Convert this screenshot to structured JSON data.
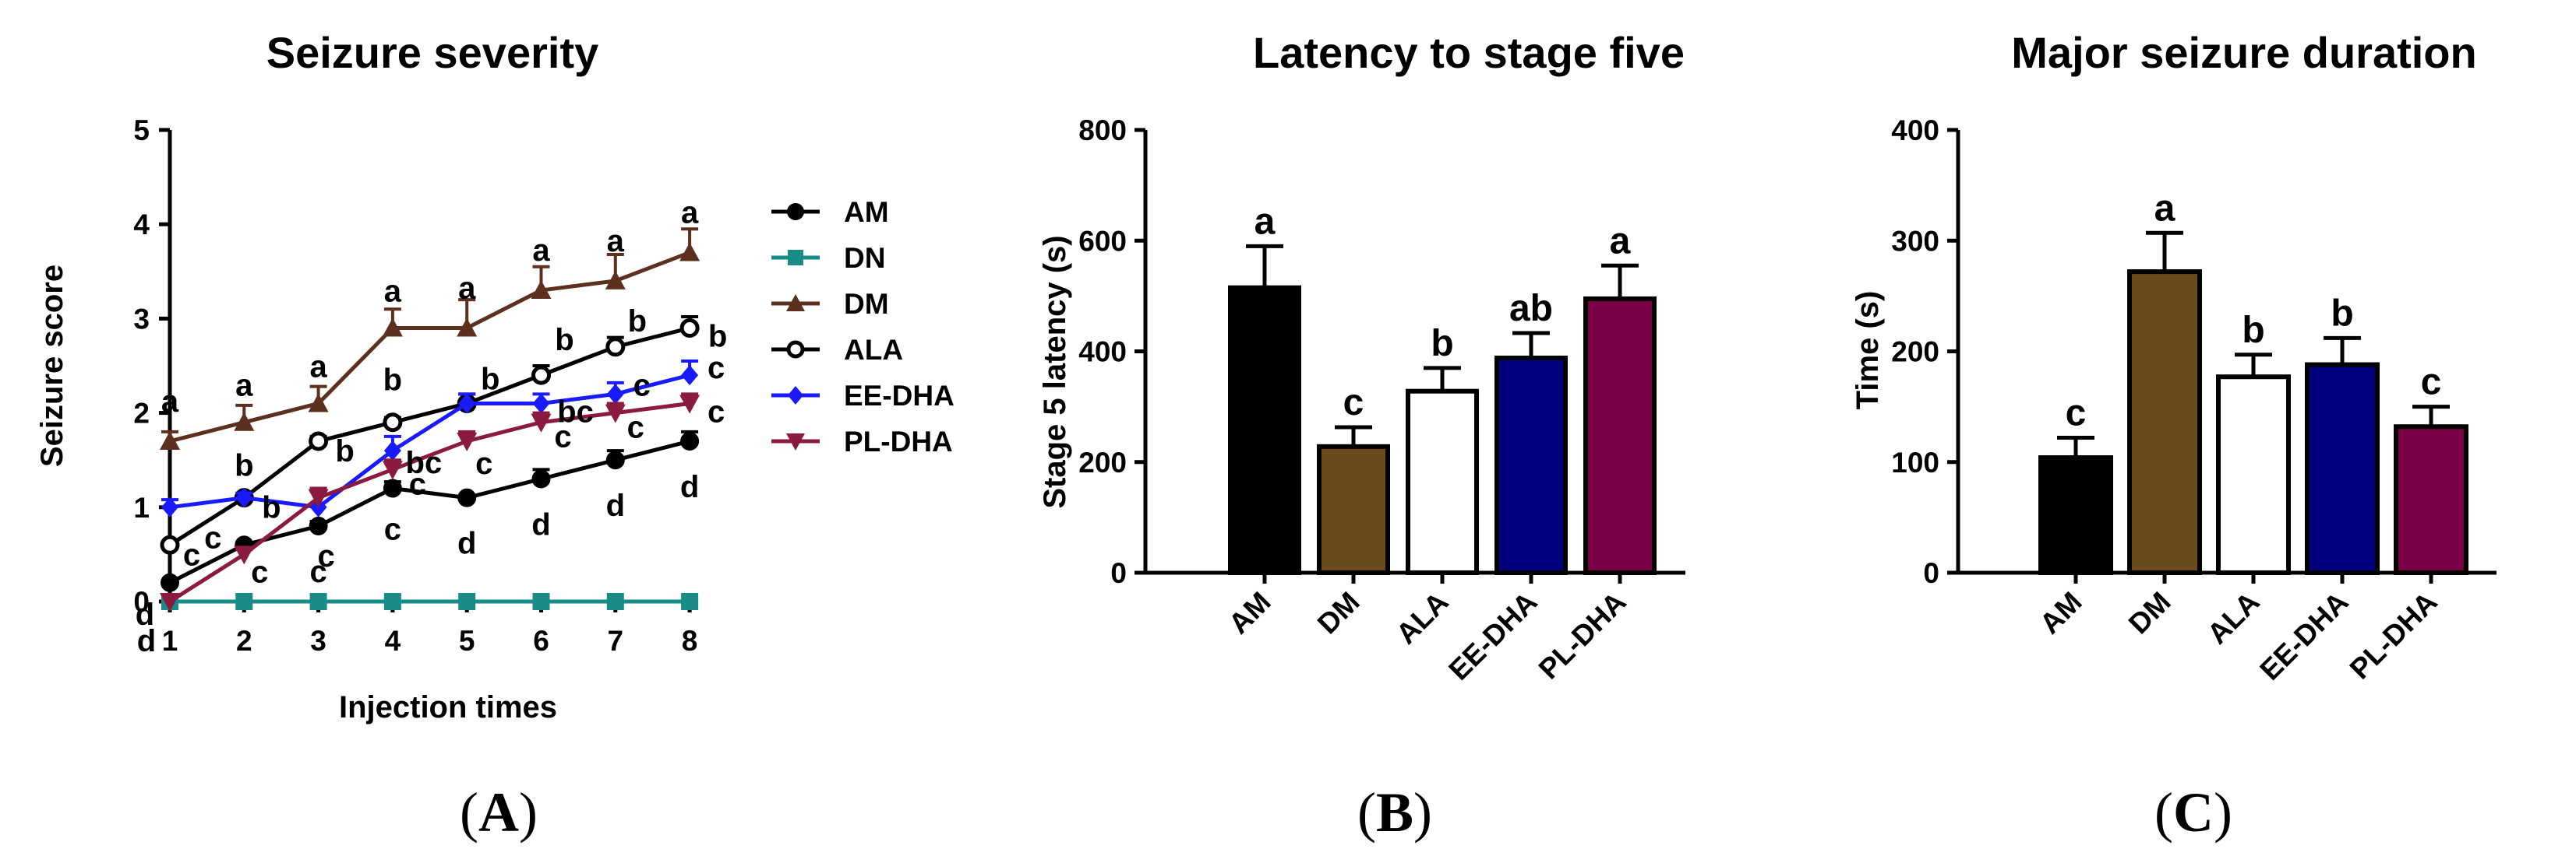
{
  "chart_data": [
    {
      "type": "line",
      "panel": "A",
      "title": "Seizure severity",
      "xlabel": "Injection times",
      "ylabel": "Seizure score",
      "ylim": [
        0,
        5
      ],
      "yticks": [
        "0",
        "1",
        "2",
        "3",
        "4",
        "5"
      ],
      "x": [
        1,
        2,
        3,
        4,
        5,
        6,
        7,
        8
      ],
      "xticks": [
        "1",
        "2",
        "3",
        "4",
        "5",
        "6",
        "7",
        "8"
      ],
      "series": [
        {
          "name": "AM",
          "color": "#000000",
          "marker": "circle",
          "values": [
            0.2,
            0.6,
            0.8,
            1.2,
            1.1,
            1.3,
            1.5,
            1.7
          ],
          "errors": [
            0,
            0,
            0.05,
            0.07,
            0,
            0.1,
            0.1,
            0.1
          ],
          "letters": [
            "d",
            "c",
            "c",
            "c",
            "d",
            "d",
            "d",
            "d"
          ]
        },
        {
          "name": "DN",
          "color": "#1a8c87",
          "marker": "square",
          "values": [
            0,
            0,
            0,
            0,
            0,
            0,
            0,
            0
          ],
          "errors": [
            0,
            0,
            0,
            0,
            0,
            0,
            0,
            0
          ],
          "letters": [
            "d",
            "",
            "",
            "",
            "",
            "",
            "",
            ""
          ]
        },
        {
          "name": "DM",
          "color": "#5c2f1f",
          "marker": "triangle",
          "values": [
            1.7,
            1.9,
            2.1,
            2.9,
            2.9,
            3.3,
            3.4,
            3.7
          ],
          "errors": [
            0.1,
            0.18,
            0.18,
            0.2,
            0.3,
            0.25,
            0.28,
            0.25
          ],
          "letters": [
            "a",
            "a",
            "a",
            "a",
            "a",
            "a",
            "a",
            "a"
          ]
        },
        {
          "name": "ALA",
          "color": "#000000",
          "marker": "open-circle",
          "values": [
            0.6,
            1.1,
            1.7,
            1.9,
            2.1,
            2.4,
            2.7,
            2.9
          ],
          "errors": [
            0,
            0,
            0.05,
            0.05,
            0.1,
            0.1,
            0.1,
            0.12
          ],
          "letters": [
            "c",
            "b",
            "b",
            "b",
            "b",
            "b",
            "b",
            "b"
          ]
        },
        {
          "name": "EE-DHA",
          "color": "#1a1aff",
          "marker": "diamond",
          "values": [
            1.0,
            1.1,
            1.0,
            1.6,
            2.1,
            2.1,
            2.2,
            2.4
          ],
          "errors": [
            0.08,
            0.05,
            0.17,
            0.15,
            0.1,
            0.1,
            0.12,
            0.15
          ],
          "letters": [
            "",
            "b",
            "c",
            "bc",
            "",
            "bc",
            "c",
            "c"
          ]
        },
        {
          "name": "PL-DHA",
          "color": "#8b1a3e",
          "marker": "triangle-down",
          "values": [
            0,
            0.5,
            1.1,
            1.4,
            1.7,
            1.9,
            2.0,
            2.1
          ],
          "errors": [
            0,
            0.05,
            0.1,
            0.1,
            0.1,
            0.1,
            0.1,
            0.1
          ],
          "letters": [
            "",
            "c",
            "c",
            "c",
            "c",
            "c",
            "c",
            "c"
          ]
        }
      ],
      "panel_label": "(A)"
    },
    {
      "type": "bar",
      "panel": "B",
      "title": "Latency to stage five",
      "xlabel": "",
      "ylabel": "Stage 5 latency (s)",
      "ylim": [
        0,
        800
      ],
      "yticks": [
        "0",
        "200",
        "400",
        "600",
        "800"
      ],
      "categories": [
        "AM",
        "DM",
        "ALA",
        "EE-DHA",
        "PL-DHA"
      ],
      "values": [
        515,
        228,
        328,
        388,
        495
      ],
      "errors": [
        75,
        35,
        42,
        45,
        60
      ],
      "colors": [
        "#000000",
        "#6b4a1e",
        "#ffffff",
        "#00007f",
        "#7a0045"
      ],
      "letters": [
        "a",
        "c",
        "b",
        "ab",
        "a"
      ],
      "panel_label": "(B)"
    },
    {
      "type": "bar",
      "panel": "C",
      "title": "Major seizure duration",
      "xlabel": "",
      "ylabel": "Time (s)",
      "ylim": [
        0,
        400
      ],
      "yticks": [
        "0",
        "100",
        "200",
        "300",
        "400"
      ],
      "categories": [
        "AM",
        "DM",
        "ALA",
        "EE-DHA",
        "PL-DHA"
      ],
      "values": [
        104,
        272,
        177,
        188,
        132
      ],
      "errors": [
        18,
        35,
        20,
        24,
        18
      ],
      "colors": [
        "#000000",
        "#6b4a1e",
        "#ffffff",
        "#00007f",
        "#7a0045"
      ],
      "letters": [
        "c",
        "a",
        "b",
        "b",
        "c"
      ],
      "panel_label": "(C)"
    }
  ]
}
